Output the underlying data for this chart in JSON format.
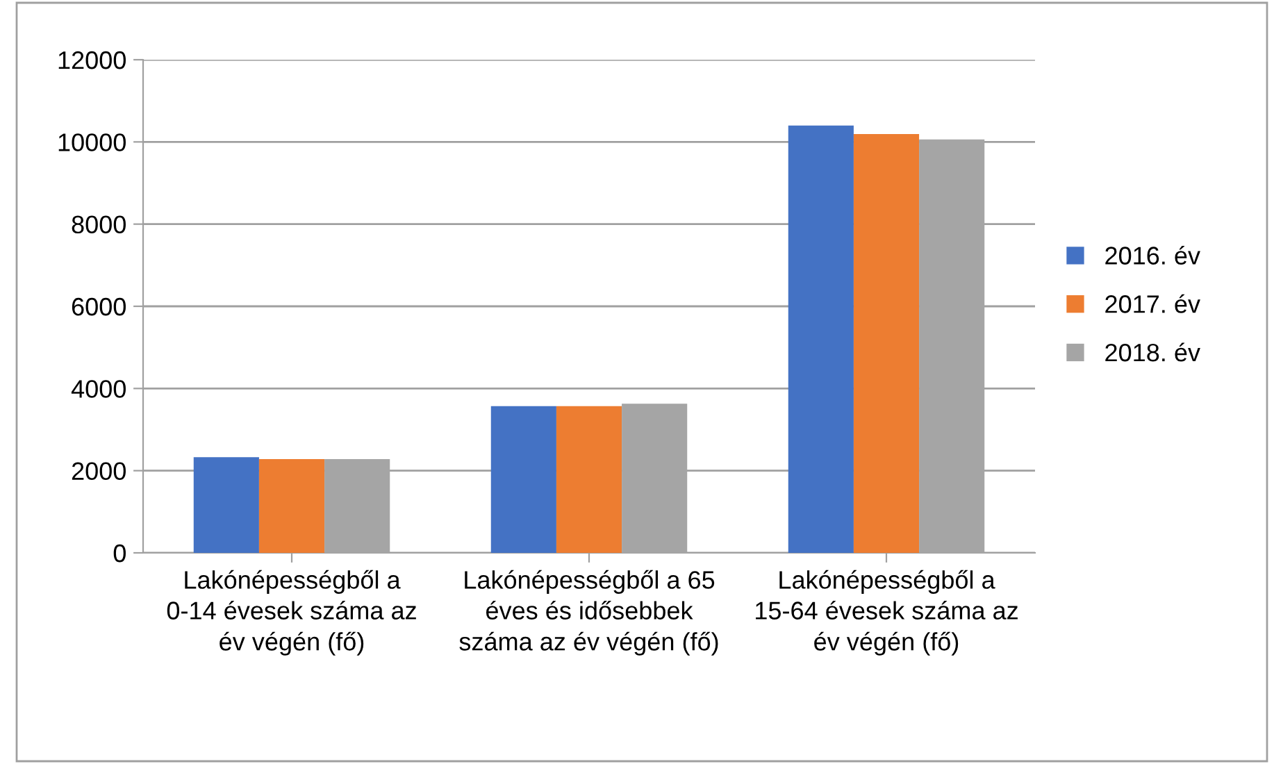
{
  "chart_data": {
    "type": "bar",
    "categories": [
      "Lakónépességből a 0-14 évesek száma az év végén (fő)",
      "Lakónépességből a 65 éves és idősebbek száma az év végén (fő)",
      "Lakónépességből a 15-64 évesek száma az év végén (fő)"
    ],
    "series": [
      {
        "name": "2016. év",
        "color": "#4472c4",
        "values": [
          2330,
          3570,
          10400
        ]
      },
      {
        "name": "2017. év",
        "color": "#ed7d31",
        "values": [
          2280,
          3570,
          10190
        ]
      },
      {
        "name": "2018. év",
        "color": "#a5a5a5",
        "values": [
          2280,
          3630,
          10060
        ]
      }
    ],
    "ylim": [
      0,
      12000
    ],
    "yticks": [
      0,
      2000,
      4000,
      6000,
      8000,
      10000,
      12000
    ],
    "grid": "y",
    "legend": "right"
  }
}
